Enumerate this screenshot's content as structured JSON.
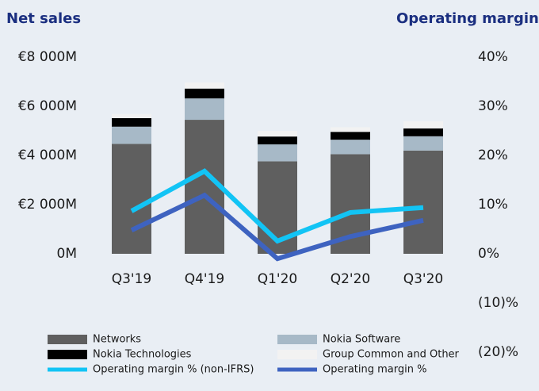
{
  "chart_data": {
    "type": "bar",
    "stacked": true,
    "title": "Net sales",
    "y2_title": "Operating margin",
    "categories": [
      "Q3'19",
      "Q4'19",
      "Q1'20",
      "Q2'20",
      "Q3'20"
    ],
    "series": [
      {
        "name": "Networks",
        "color": "#5f5f5f",
        "values": [
          4470,
          5450,
          3760,
          4050,
          4200
        ]
      },
      {
        "name": "Nokia Software",
        "color": "#a7b9c7",
        "values": [
          700,
          870,
          690,
          590,
          580
        ]
      },
      {
        "name": "Nokia Technologies",
        "color": "#000000",
        "values": [
          350,
          400,
          320,
          320,
          320
        ]
      },
      {
        "name": "Group Common and Other",
        "color": "#f2f2f2",
        "values": [
          170,
          250,
          230,
          190,
          290
        ]
      },
      {
        "name": "Operating margin % (non-IFRS)",
        "color": "#12c4f5",
        "type": "line",
        "axis": "y2",
        "values": [
          8.7,
          16.8,
          2.6,
          8.4,
          9.4
        ]
      },
      {
        "name": "Operating margin %",
        "color": "#3e63c0",
        "type": "line",
        "axis": "y2",
        "values": [
          4.8,
          11.9,
          -1.0,
          3.5,
          6.8
        ]
      }
    ],
    "ylim": [
      -4000,
      8000
    ],
    "yticks": [
      {
        "value": 0,
        "label": "0M"
      },
      {
        "value": 2000,
        "label": "€2 000M"
      },
      {
        "value": 4000,
        "label": "€4 000M"
      },
      {
        "value": 6000,
        "label": "€6 000M"
      },
      {
        "value": 8000,
        "label": "€8 000M"
      }
    ],
    "y2lim": [
      -20,
      40
    ],
    "y2ticks": [
      {
        "value": -20,
        "label": "(20)%"
      },
      {
        "value": -10,
        "label": "(10)%"
      },
      {
        "value": 0,
        "label": "0%"
      },
      {
        "value": 10,
        "label": "10%"
      },
      {
        "value": 20,
        "label": "20%"
      },
      {
        "value": 30,
        "label": "30%"
      },
      {
        "value": 40,
        "label": "40%"
      }
    ],
    "grid": false,
    "legend": "bottom"
  }
}
